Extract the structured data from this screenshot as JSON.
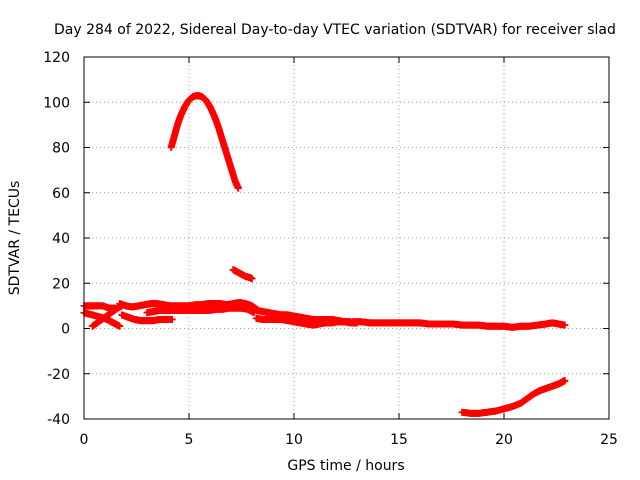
{
  "chart_data": {
    "type": "scatter",
    "title": "Day 284 of 2022, Sidereal Day-to-day VTEC variation (SDTVAR) for receiver slad",
    "xlabel": "GPS time / hours",
    "ylabel": "SDTVAR / TECUs",
    "xlim": [
      0,
      25
    ],
    "ylim": [
      -40,
      120
    ],
    "x_ticks": [
      0,
      5,
      10,
      15,
      20,
      25
    ],
    "y_ticks": [
      -40,
      -20,
      0,
      20,
      40,
      60,
      80,
      100,
      120
    ],
    "grid": true,
    "legend": "none",
    "marker": "plus",
    "series_color": "#ff0000",
    "series": [
      {
        "name": "arc-high",
        "points": [
          [
            4.15,
            80
          ],
          [
            4.3,
            85
          ],
          [
            4.45,
            90
          ],
          [
            4.6,
            94
          ],
          [
            4.8,
            98
          ],
          [
            5.0,
            101
          ],
          [
            5.2,
            102.5
          ],
          [
            5.4,
            103
          ],
          [
            5.6,
            102.5
          ],
          [
            5.8,
            101
          ],
          [
            6.0,
            98
          ],
          [
            6.2,
            94
          ],
          [
            6.4,
            89
          ],
          [
            6.6,
            83
          ],
          [
            6.8,
            77
          ],
          [
            7.0,
            71
          ],
          [
            7.2,
            65
          ],
          [
            7.35,
            62
          ]
        ]
      },
      {
        "name": "arc-mid",
        "points": [
          [
            7.1,
            26
          ],
          [
            7.3,
            25
          ],
          [
            7.5,
            24
          ],
          [
            7.7,
            23
          ],
          [
            7.9,
            22.5
          ],
          [
            8.0,
            22
          ]
        ]
      },
      {
        "name": "arc-early-a",
        "points": [
          [
            0.0,
            10
          ],
          [
            0.3,
            10
          ],
          [
            0.6,
            10
          ],
          [
            0.9,
            10
          ],
          [
            1.2,
            9
          ],
          [
            1.5,
            9
          ]
        ]
      },
      {
        "name": "arc-early-b",
        "points": [
          [
            0.0,
            7
          ],
          [
            0.4,
            6
          ],
          [
            0.8,
            5
          ],
          [
            1.1,
            4
          ],
          [
            1.3,
            3
          ],
          [
            1.5,
            2
          ],
          [
            1.7,
            1
          ]
        ]
      },
      {
        "name": "arc-early-c",
        "points": [
          [
            0.4,
            1
          ],
          [
            0.7,
            3
          ],
          [
            1.0,
            5
          ],
          [
            1.3,
            7
          ],
          [
            1.6,
            9
          ],
          [
            1.8,
            10
          ]
        ]
      },
      {
        "name": "arc-early-d",
        "points": [
          [
            1.8,
            6
          ],
          [
            2.1,
            5
          ],
          [
            2.4,
            4
          ],
          [
            2.7,
            3.5
          ],
          [
            3.0,
            3.5
          ],
          [
            3.3,
            3.5
          ],
          [
            3.6,
            4
          ],
          [
            3.9,
            4
          ],
          [
            4.2,
            4
          ]
        ]
      },
      {
        "name": "arc-band-upper",
        "points": [
          [
            1.7,
            11
          ],
          [
            2.0,
            10
          ],
          [
            2.3,
            9.5
          ],
          [
            2.6,
            10
          ],
          [
            2.9,
            10.5
          ],
          [
            3.2,
            11
          ],
          [
            3.5,
            11
          ],
          [
            3.8,
            10.5
          ],
          [
            4.1,
            10
          ],
          [
            4.4,
            10
          ],
          [
            4.7,
            10
          ],
          [
            5.0,
            10
          ],
          [
            5.3,
            10.5
          ],
          [
            5.6,
            10.5
          ],
          [
            5.9,
            11
          ],
          [
            6.2,
            11
          ],
          [
            6.5,
            11
          ],
          [
            6.8,
            10.5
          ],
          [
            7.1,
            11
          ],
          [
            7.4,
            11.5
          ],
          [
            7.7,
            11
          ],
          [
            8.0,
            10
          ],
          [
            8.3,
            8
          ]
        ]
      },
      {
        "name": "arc-band-lower",
        "points": [
          [
            3.0,
            7
          ],
          [
            3.3,
            7.5
          ],
          [
            3.6,
            8
          ],
          [
            3.9,
            8
          ],
          [
            4.2,
            8
          ],
          [
            4.5,
            8
          ],
          [
            4.8,
            8
          ],
          [
            5.1,
            8
          ],
          [
            5.4,
            8
          ],
          [
            5.7,
            8
          ],
          [
            6.0,
            8
          ],
          [
            6.3,
            8.5
          ],
          [
            6.6,
            8.5
          ],
          [
            6.9,
            9
          ],
          [
            7.2,
            9
          ],
          [
            7.5,
            9
          ],
          [
            7.8,
            8.5
          ],
          [
            8.1,
            7
          ]
        ]
      },
      {
        "name": "arc-decay",
        "points": [
          [
            8.2,
            8
          ],
          [
            8.5,
            7.5
          ],
          [
            8.8,
            7
          ],
          [
            9.1,
            6.5
          ],
          [
            9.4,
            6
          ],
          [
            9.7,
            6
          ],
          [
            10.0,
            5.5
          ],
          [
            10.3,
            5
          ],
          [
            10.6,
            4.5
          ],
          [
            10.9,
            4
          ],
          [
            11.2,
            4
          ],
          [
            11.5,
            4
          ],
          [
            11.8,
            4
          ],
          [
            12.1,
            3.5
          ],
          [
            12.4,
            3
          ],
          [
            12.7,
            2.5
          ],
          [
            13.0,
            2.5
          ]
        ]
      },
      {
        "name": "arc-decay-low",
        "points": [
          [
            8.2,
            4.5
          ],
          [
            8.5,
            4
          ],
          [
            8.8,
            4
          ],
          [
            9.1,
            4
          ],
          [
            9.4,
            4
          ],
          [
            9.7,
            3.5
          ],
          [
            10.0,
            3
          ],
          [
            10.3,
            2.5
          ],
          [
            10.6,
            2
          ],
          [
            10.9,
            1.5
          ],
          [
            11.2,
            2
          ],
          [
            11.5,
            2.5
          ],
          [
            11.8,
            2.5
          ],
          [
            12.1,
            3
          ],
          [
            12.4,
            3
          ],
          [
            12.7,
            3
          ]
        ]
      },
      {
        "name": "arc-mid-baseline",
        "points": [
          [
            12.8,
            3
          ],
          [
            13.2,
            3
          ],
          [
            13.6,
            2.5
          ],
          [
            14.0,
            2.5
          ],
          [
            14.4,
            2.5
          ],
          [
            14.8,
            2.5
          ],
          [
            15.2,
            2.5
          ],
          [
            15.6,
            2.5
          ],
          [
            16.0,
            2.5
          ],
          [
            16.4,
            2
          ],
          [
            16.8,
            2
          ],
          [
            17.2,
            2
          ],
          [
            17.6,
            2
          ],
          [
            18.0,
            1.5
          ],
          [
            18.4,
            1.5
          ],
          [
            18.8,
            1.5
          ],
          [
            19.2,
            1
          ],
          [
            19.6,
            1
          ],
          [
            20.0,
            1
          ],
          [
            20.4,
            0.5
          ],
          [
            20.8,
            1
          ],
          [
            21.2,
            1
          ],
          [
            21.6,
            1.5
          ],
          [
            22.0,
            2
          ],
          [
            22.3,
            2.5
          ],
          [
            22.6,
            2
          ],
          [
            22.9,
            1.5
          ]
        ]
      },
      {
        "name": "arc-low",
        "points": [
          [
            18.0,
            -37
          ],
          [
            18.4,
            -37.5
          ],
          [
            18.8,
            -37.5
          ],
          [
            19.2,
            -37
          ],
          [
            19.6,
            -36.5
          ],
          [
            20.0,
            -35.5
          ],
          [
            20.4,
            -34.5
          ],
          [
            20.8,
            -33
          ],
          [
            21.1,
            -31
          ],
          [
            21.4,
            -29
          ],
          [
            21.7,
            -27.5
          ],
          [
            22.0,
            -26.5
          ],
          [
            22.3,
            -25.5
          ],
          [
            22.6,
            -24.5
          ],
          [
            22.8,
            -23.5
          ],
          [
            22.9,
            -23
          ]
        ]
      }
    ]
  }
}
